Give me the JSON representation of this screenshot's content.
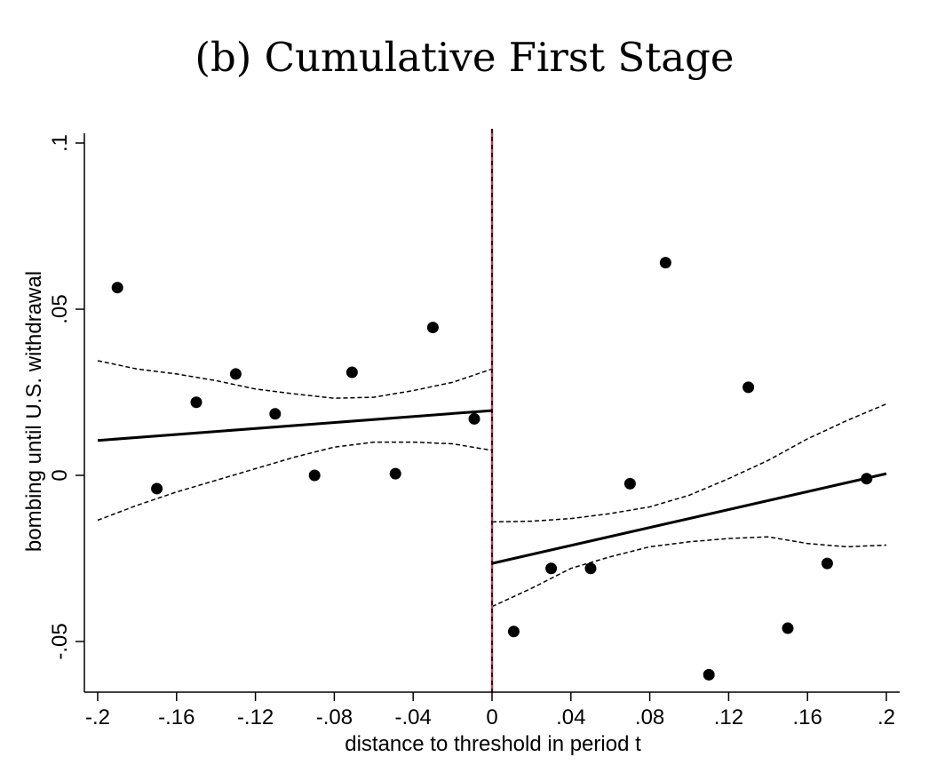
{
  "chart_data": {
    "type": "scatter",
    "title": "(b) Cumulative First Stage",
    "xlabel": "distance to threshold in period t",
    "ylabel": "bombing until U.S. withdrawal",
    "xlim": [
      -0.2,
      0.2
    ],
    "ylim": [
      -0.065,
      0.1
    ],
    "x_ticks": [
      -0.2,
      -0.16,
      -0.12,
      -0.08,
      -0.04,
      0,
      0.04,
      0.08,
      0.12,
      0.16,
      0.2
    ],
    "x_tick_labels": [
      "-.2",
      "-.16",
      "-.12",
      "-.08",
      "-.04",
      "0",
      ".04",
      ".08",
      ".12",
      ".16",
      ".2"
    ],
    "y_ticks": [
      -0.05,
      0,
      0.05,
      0.1
    ],
    "y_tick_labels": [
      "-.05",
      "0",
      ".05",
      ".1"
    ],
    "threshold": 0,
    "grid": false,
    "legend": "none",
    "points": {
      "x": [
        -0.19,
        -0.17,
        -0.15,
        -0.13,
        -0.11,
        -0.09,
        -0.071,
        -0.049,
        -0.03,
        -0.009,
        0.011,
        0.03,
        0.05,
        0.07,
        0.088,
        0.11,
        0.13,
        0.15,
        0.17,
        0.19
      ],
      "y": [
        0.0565,
        -0.004,
        0.022,
        0.0305,
        0.0185,
        0.0,
        0.031,
        0.0005,
        0.0445,
        0.017,
        -0.047,
        -0.028,
        -0.028,
        -0.0025,
        0.064,
        -0.06,
        0.0265,
        -0.046,
        -0.0265,
        -0.001
      ]
    },
    "fit_lines": [
      {
        "x": [
          -0.2,
          0.0
        ],
        "y": [
          0.0105,
          0.0195
        ]
      },
      {
        "x": [
          0.0,
          0.2
        ],
        "y": [
          -0.0265,
          0.0005
        ]
      }
    ],
    "confidence_bands": [
      {
        "x": [
          -0.2,
          -0.18,
          -0.16,
          -0.14,
          -0.12,
          -0.1,
          -0.08,
          -0.06,
          -0.04,
          -0.02,
          0.0
        ],
        "upper": [
          0.0345,
          0.032,
          0.0305,
          0.0285,
          0.026,
          0.0245,
          0.0232,
          0.0235,
          0.0255,
          0.028,
          0.032
        ],
        "lower": [
          -0.0135,
          -0.009,
          -0.005,
          -0.0015,
          0.002,
          0.0055,
          0.0085,
          0.01,
          0.01,
          0.0095,
          0.0075
        ]
      },
      {
        "x": [
          0.0,
          0.02,
          0.04,
          0.06,
          0.08,
          0.1,
          0.12,
          0.14,
          0.16,
          0.18,
          0.2
        ],
        "upper": [
          -0.014,
          -0.0138,
          -0.013,
          -0.0115,
          -0.0095,
          -0.006,
          -0.001,
          0.0045,
          0.011,
          0.0165,
          0.0215
        ],
        "lower": [
          -0.0395,
          -0.034,
          -0.028,
          -0.0245,
          -0.0215,
          -0.02,
          -0.019,
          -0.0185,
          -0.0205,
          -0.0215,
          -0.021
        ]
      }
    ],
    "colors": {
      "points": "#000000",
      "fit": "#000000",
      "band": "#000000",
      "threshold_line": "#b04a5a"
    }
  }
}
